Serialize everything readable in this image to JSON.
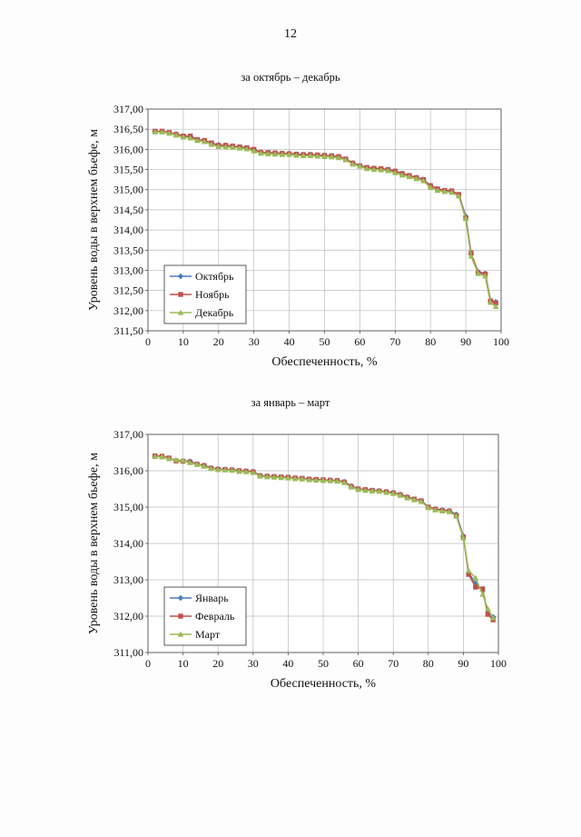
{
  "page_number": "12",
  "chart_data": [
    {
      "type": "line",
      "title": "за октябрь – декабрь",
      "xlabel": "Обеспеченность, %",
      "ylabel": "Уровень воды в верхнем бьефе, м",
      "xlim": [
        0,
        100
      ],
      "ylim": [
        311.5,
        317.0
      ],
      "xticks": [
        0,
        10,
        20,
        30,
        40,
        50,
        60,
        70,
        80,
        90,
        100
      ],
      "yticks": [
        311.5,
        312.0,
        312.5,
        313.0,
        313.5,
        314.0,
        314.5,
        315.0,
        315.5,
        316.0,
        316.5,
        317.0
      ],
      "xtick_labels": [
        "0",
        "10",
        "20",
        "30",
        "40",
        "50",
        "60",
        "70",
        "80",
        "90",
        "100"
      ],
      "ytick_labels": [
        "311,50",
        "312,00",
        "312,50",
        "313,00",
        "313,50",
        "314,00",
        "314,50",
        "315,00",
        "315,50",
        "316,00",
        "316,50",
        "317,00"
      ],
      "legend_position": "bottom-left",
      "grid": true,
      "series": [
        {
          "name": "Октябрь",
          "color": "#4a7ebb",
          "marker": "diamond",
          "x": [
            2,
            4,
            6,
            8,
            10,
            12,
            14,
            16,
            18,
            20,
            22,
            24,
            26,
            28,
            30,
            32,
            34,
            36,
            38,
            40,
            42,
            44,
            46,
            48,
            50,
            52,
            54,
            56,
            58,
            60,
            62,
            64,
            66,
            68,
            70,
            72,
            74,
            76,
            78,
            80,
            82,
            84,
            86,
            88,
            90,
            91.5,
            93.5,
            95.5,
            97,
            98.5
          ],
          "y": [
            316.44,
            316.44,
            316.41,
            316.38,
            316.33,
            316.32,
            316.24,
            316.22,
            316.15,
            316.11,
            316.1,
            316.08,
            316.06,
            316.04,
            316.0,
            315.93,
            315.92,
            315.91,
            315.9,
            315.9,
            315.88,
            315.87,
            315.87,
            315.86,
            315.85,
            315.84,
            315.82,
            315.76,
            315.66,
            315.6,
            315.55,
            315.53,
            315.52,
            315.5,
            315.46,
            315.4,
            315.35,
            315.3,
            315.25,
            315.1,
            315.02,
            314.98,
            314.96,
            314.88,
            314.34,
            313.4,
            312.96,
            312.92,
            312.25,
            312.22
          ]
        },
        {
          "name": "Ноябрь",
          "color": "#c0504d",
          "marker": "square",
          "x": [
            2,
            4,
            6,
            8,
            10,
            12,
            14,
            16,
            18,
            20,
            22,
            24,
            26,
            28,
            30,
            32,
            34,
            36,
            38,
            40,
            42,
            44,
            46,
            48,
            50,
            52,
            54,
            56,
            58,
            60,
            62,
            64,
            66,
            68,
            70,
            72,
            74,
            76,
            78,
            80,
            82,
            84,
            86,
            88,
            90,
            91.5,
            93.5,
            95.5,
            97,
            98.5
          ],
          "y": [
            316.45,
            316.45,
            316.42,
            316.37,
            316.33,
            316.33,
            316.24,
            316.22,
            316.16,
            316.1,
            316.1,
            316.08,
            316.06,
            316.04,
            316.0,
            315.92,
            315.92,
            315.91,
            315.9,
            315.89,
            315.88,
            315.87,
            315.87,
            315.86,
            315.85,
            315.84,
            315.82,
            315.76,
            315.66,
            315.59,
            315.55,
            315.53,
            315.52,
            315.5,
            315.46,
            315.4,
            315.35,
            315.3,
            315.25,
            315.1,
            315.02,
            314.98,
            314.97,
            314.88,
            314.3,
            313.43,
            312.94,
            312.91,
            312.24,
            312.19
          ]
        },
        {
          "name": "Декабрь",
          "color": "#9bbb59",
          "marker": "triangle",
          "x": [
            2,
            4,
            6,
            8,
            10,
            12,
            14,
            16,
            18,
            20,
            22,
            24,
            26,
            28,
            30,
            32,
            34,
            36,
            38,
            40,
            42,
            44,
            46,
            48,
            50,
            52,
            54,
            56,
            58,
            60,
            62,
            64,
            66,
            68,
            70,
            72,
            74,
            76,
            78,
            80,
            82,
            84,
            86,
            88,
            90,
            91.5,
            93.5,
            95.5,
            97,
            98.5
          ],
          "y": [
            316.43,
            316.43,
            316.4,
            316.35,
            316.3,
            316.28,
            316.22,
            316.19,
            316.12,
            316.07,
            316.06,
            316.05,
            316.03,
            316.01,
            315.96,
            315.9,
            315.89,
            315.88,
            315.87,
            315.87,
            315.85,
            315.84,
            315.84,
            315.83,
            315.82,
            315.81,
            315.79,
            315.74,
            315.63,
            315.58,
            315.52,
            315.5,
            315.49,
            315.47,
            315.42,
            315.36,
            315.32,
            315.27,
            315.22,
            315.05,
            314.98,
            314.95,
            314.93,
            314.84,
            314.28,
            313.35,
            312.92,
            312.86,
            312.2,
            312.1
          ]
        }
      ]
    },
    {
      "type": "line",
      "title": "за январь – март",
      "xlabel": "Обеспеченность, %",
      "ylabel": "Уровень воды в верхнем бьефе, м",
      "xlim": [
        0,
        100
      ],
      "ylim": [
        311.0,
        317.0
      ],
      "xticks": [
        0,
        10,
        20,
        30,
        40,
        50,
        60,
        70,
        80,
        90,
        100
      ],
      "yticks": [
        311.0,
        312.0,
        313.0,
        314.0,
        315.0,
        316.0,
        317.0
      ],
      "xtick_labels": [
        "0",
        "10",
        "20",
        "30",
        "40",
        "50",
        "60",
        "70",
        "80",
        "90",
        "100"
      ],
      "ytick_labels": [
        "311,00",
        "312,00",
        "313,00",
        "314,00",
        "315,00",
        "316,00",
        "317,00"
      ],
      "legend_position": "bottom-left",
      "grid": true,
      "series": [
        {
          "name": "Январь",
          "color": "#4a7ebb",
          "marker": "diamond",
          "x": [
            2,
            4,
            6,
            8,
            10,
            12,
            14,
            16,
            18,
            20,
            22,
            24,
            26,
            28,
            30,
            32,
            34,
            36,
            38,
            40,
            42,
            44,
            46,
            48,
            50,
            52,
            54,
            56,
            58,
            60,
            62,
            64,
            66,
            68,
            70,
            72,
            74,
            76,
            78,
            80,
            82,
            84,
            86,
            88,
            90,
            91.5,
            93.5,
            95.5,
            97,
            98.5
          ],
          "y": [
            316.4,
            316.39,
            316.35,
            316.28,
            316.27,
            316.26,
            316.18,
            316.15,
            316.08,
            316.05,
            316.04,
            316.03,
            316.0,
            315.99,
            315.98,
            315.87,
            315.85,
            315.84,
            315.83,
            315.82,
            315.8,
            315.79,
            315.77,
            315.76,
            315.75,
            315.74,
            315.73,
            315.7,
            315.58,
            315.5,
            315.48,
            315.46,
            315.45,
            315.42,
            315.4,
            315.35,
            315.28,
            315.22,
            315.18,
            315.0,
            314.95,
            314.92,
            314.9,
            314.8,
            314.2,
            313.2,
            312.9,
            312.7,
            312.1,
            311.98
          ]
        },
        {
          "name": "Февраль",
          "color": "#c0504d",
          "marker": "square",
          "x": [
            2,
            4,
            6,
            8,
            10,
            12,
            14,
            16,
            18,
            20,
            22,
            24,
            26,
            28,
            30,
            32,
            34,
            36,
            38,
            40,
            42,
            44,
            46,
            48,
            50,
            52,
            54,
            56,
            58,
            60,
            62,
            64,
            66,
            68,
            70,
            72,
            74,
            76,
            78,
            80,
            82,
            84,
            86,
            88,
            90,
            91.5,
            93.5,
            95.5,
            97,
            98.5
          ],
          "y": [
            316.41,
            316.4,
            316.35,
            316.27,
            316.26,
            316.24,
            316.18,
            316.14,
            316.07,
            316.04,
            316.03,
            316.02,
            316.0,
            315.99,
            315.97,
            315.86,
            315.85,
            315.84,
            315.83,
            315.82,
            315.8,
            315.79,
            315.77,
            315.76,
            315.75,
            315.74,
            315.73,
            315.69,
            315.57,
            315.5,
            315.48,
            315.46,
            315.44,
            315.42,
            315.39,
            315.34,
            315.27,
            315.22,
            315.17,
            315.0,
            314.94,
            314.91,
            314.89,
            314.77,
            314.18,
            313.15,
            312.8,
            312.75,
            312.05,
            311.9
          ]
        },
        {
          "name": "Март",
          "color": "#9bbb59",
          "marker": "triangle",
          "x": [
            2,
            4,
            6,
            8,
            10,
            12,
            14,
            16,
            18,
            20,
            22,
            24,
            26,
            28,
            30,
            32,
            34,
            36,
            38,
            40,
            42,
            44,
            46,
            48,
            50,
            52,
            54,
            56,
            58,
            60,
            62,
            64,
            66,
            68,
            70,
            72,
            74,
            76,
            78,
            80,
            82,
            84,
            86,
            88,
            90,
            91.5,
            93.5,
            95.5,
            97,
            98.5
          ],
          "y": [
            316.39,
            316.38,
            316.33,
            316.3,
            316.28,
            316.22,
            316.17,
            316.12,
            316.06,
            316.03,
            316.02,
            316.01,
            315.98,
            315.97,
            315.95,
            315.85,
            315.83,
            315.82,
            315.81,
            315.8,
            315.78,
            315.77,
            315.75,
            315.74,
            315.73,
            315.72,
            315.71,
            315.67,
            315.55,
            315.48,
            315.46,
            315.44,
            315.43,
            315.4,
            315.37,
            315.32,
            315.25,
            315.2,
            315.15,
            314.98,
            314.92,
            314.89,
            314.87,
            314.75,
            314.15,
            313.25,
            313.05,
            312.6,
            312.2,
            311.95
          ]
        }
      ]
    }
  ]
}
